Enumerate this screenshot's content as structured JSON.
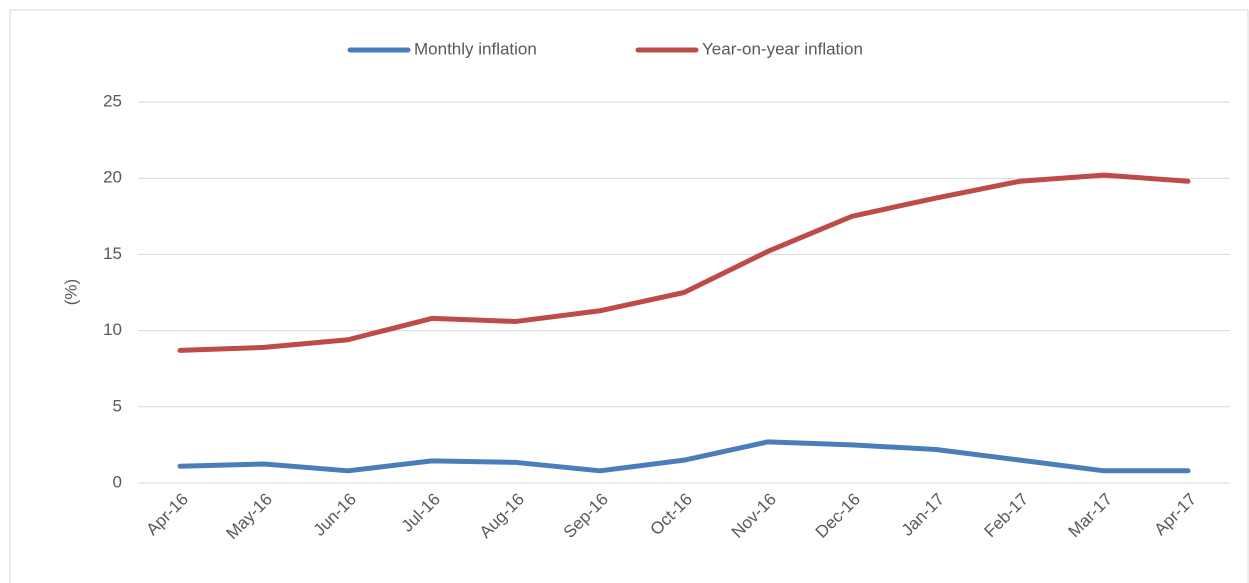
{
  "chart_data": {
    "type": "line",
    "y_label": "(%)",
    "categories": [
      "Apr-16",
      "May-16",
      "Jun-16",
      "Jul-16",
      "Aug-16",
      "Sep-16",
      "Oct-16",
      "Nov-16",
      "Dec-16",
      "Jan-17",
      "Feb-17",
      "Mar-17",
      "Apr-17"
    ],
    "series": [
      {
        "name": "Monthly inflation",
        "color": "#4a7ebb",
        "values": [
          1.1,
          1.25,
          0.8,
          1.45,
          1.35,
          0.8,
          1.5,
          2.7,
          2.5,
          2.2,
          1.5,
          0.8,
          0.8
        ]
      },
      {
        "name": "Year-on-year inflation",
        "color": "#be4b48",
        "values": [
          8.7,
          8.9,
          9.4,
          10.8,
          10.6,
          11.3,
          12.5,
          15.2,
          17.5,
          18.7,
          19.8,
          20.2,
          19.8
        ]
      }
    ],
    "ylim": [
      0,
      25
    ],
    "yticks": [
      0,
      5,
      10,
      15,
      20,
      25
    ],
    "grid": true,
    "legend": "top"
  }
}
